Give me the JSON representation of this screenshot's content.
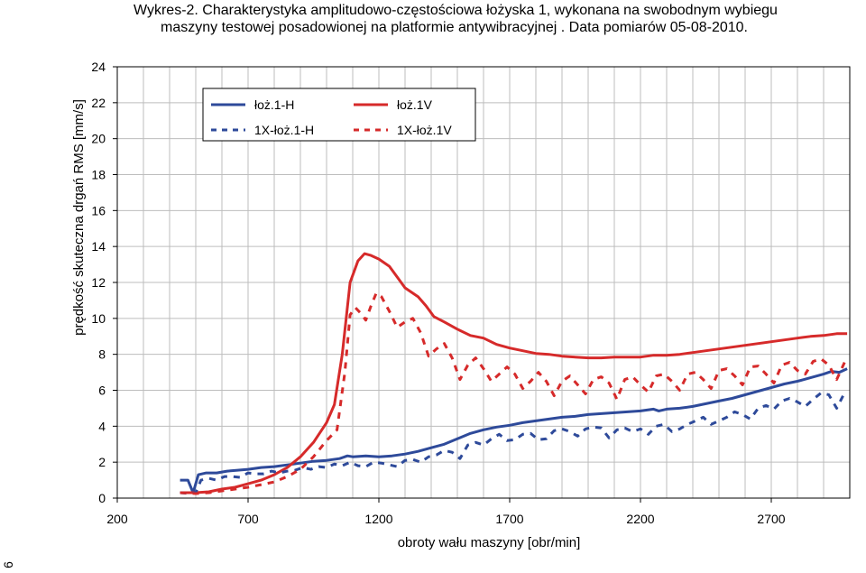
{
  "page_number": "6",
  "chart_data": {
    "type": "line",
    "title_lines": [
      "Wykres-2. Charakterystyka amplitudowo-częstościowa łożyska 1, wykonana na swobodnym wybiegu",
      "maszyny testowej posadowionej na platformie antywibracyjnej . Data pomiarów 05-08-2010."
    ],
    "xlabel": "obroty wału maszyny [obr/min]",
    "ylabel": "prędkość skuteczna drgań RMS [mm/s]",
    "xlim": [
      200,
      3000
    ],
    "ylim": [
      0,
      24
    ],
    "x_ticks": [
      200,
      700,
      1200,
      1700,
      2200,
      2700
    ],
    "y_ticks": [
      0,
      2,
      4,
      6,
      8,
      10,
      12,
      14,
      16,
      18,
      20,
      22,
      24
    ],
    "grid": true,
    "legend_position": "top-left",
    "series": [
      {
        "name": "łoż.1-H",
        "color": "#2e4a9a",
        "dash": "solid",
        "points": [
          [
            440,
            1.0
          ],
          [
            470,
            1.0
          ],
          [
            490,
            0.3
          ],
          [
            510,
            1.3
          ],
          [
            540,
            1.4
          ],
          [
            580,
            1.4
          ],
          [
            620,
            1.5
          ],
          [
            660,
            1.55
          ],
          [
            700,
            1.6
          ],
          [
            750,
            1.7
          ],
          [
            800,
            1.75
          ],
          [
            850,
            1.85
          ],
          [
            900,
            1.95
          ],
          [
            950,
            2.05
          ],
          [
            1000,
            2.1
          ],
          [
            1050,
            2.2
          ],
          [
            1080,
            2.35
          ],
          [
            1100,
            2.3
          ],
          [
            1150,
            2.35
          ],
          [
            1200,
            2.3
          ],
          [
            1250,
            2.35
          ],
          [
            1300,
            2.45
          ],
          [
            1350,
            2.6
          ],
          [
            1400,
            2.8
          ],
          [
            1450,
            3.0
          ],
          [
            1500,
            3.3
          ],
          [
            1550,
            3.6
          ],
          [
            1600,
            3.8
          ],
          [
            1650,
            3.95
          ],
          [
            1700,
            4.05
          ],
          [
            1750,
            4.2
          ],
          [
            1800,
            4.3
          ],
          [
            1850,
            4.4
          ],
          [
            1900,
            4.5
          ],
          [
            1950,
            4.55
          ],
          [
            2000,
            4.65
          ],
          [
            2050,
            4.7
          ],
          [
            2100,
            4.75
          ],
          [
            2150,
            4.8
          ],
          [
            2200,
            4.85
          ],
          [
            2250,
            4.95
          ],
          [
            2270,
            4.85
          ],
          [
            2300,
            4.95
          ],
          [
            2350,
            5.0
          ],
          [
            2400,
            5.1
          ],
          [
            2450,
            5.25
          ],
          [
            2500,
            5.4
          ],
          [
            2550,
            5.55
          ],
          [
            2600,
            5.75
          ],
          [
            2650,
            5.95
          ],
          [
            2700,
            6.15
          ],
          [
            2750,
            6.35
          ],
          [
            2800,
            6.5
          ],
          [
            2850,
            6.7
          ],
          [
            2900,
            6.9
          ],
          [
            2930,
            7.05
          ],
          [
            2960,
            7.0
          ],
          [
            2990,
            7.2
          ]
        ]
      },
      {
        "name": "łoż.1V",
        "color": "#d62a2a",
        "dash": "solid",
        "points": [
          [
            440,
            0.3
          ],
          [
            500,
            0.3
          ],
          [
            550,
            0.35
          ],
          [
            600,
            0.5
          ],
          [
            650,
            0.6
          ],
          [
            700,
            0.8
          ],
          [
            750,
            1.0
          ],
          [
            800,
            1.3
          ],
          [
            850,
            1.7
          ],
          [
            900,
            2.3
          ],
          [
            950,
            3.1
          ],
          [
            1000,
            4.2
          ],
          [
            1030,
            5.2
          ],
          [
            1060,
            8.0
          ],
          [
            1090,
            12.0
          ],
          [
            1120,
            13.2
          ],
          [
            1145,
            13.6
          ],
          [
            1170,
            13.5
          ],
          [
            1200,
            13.3
          ],
          [
            1240,
            12.9
          ],
          [
            1270,
            12.3
          ],
          [
            1300,
            11.7
          ],
          [
            1350,
            11.2
          ],
          [
            1380,
            10.7
          ],
          [
            1410,
            10.1
          ],
          [
            1450,
            9.8
          ],
          [
            1500,
            9.4
          ],
          [
            1550,
            9.05
          ],
          [
            1600,
            8.9
          ],
          [
            1650,
            8.55
          ],
          [
            1700,
            8.35
          ],
          [
            1750,
            8.2
          ],
          [
            1800,
            8.05
          ],
          [
            1850,
            8.0
          ],
          [
            1900,
            7.9
          ],
          [
            1950,
            7.85
          ],
          [
            2000,
            7.8
          ],
          [
            2050,
            7.8
          ],
          [
            2100,
            7.85
          ],
          [
            2150,
            7.85
          ],
          [
            2200,
            7.85
          ],
          [
            2250,
            7.95
          ],
          [
            2300,
            7.95
          ],
          [
            2350,
            8.0
          ],
          [
            2400,
            8.1
          ],
          [
            2450,
            8.2
          ],
          [
            2500,
            8.3
          ],
          [
            2550,
            8.4
          ],
          [
            2600,
            8.5
          ],
          [
            2650,
            8.6
          ],
          [
            2700,
            8.7
          ],
          [
            2750,
            8.8
          ],
          [
            2800,
            8.9
          ],
          [
            2850,
            9.0
          ],
          [
            2900,
            9.05
          ],
          [
            2950,
            9.15
          ],
          [
            2990,
            9.15
          ]
        ]
      },
      {
        "name": "1X-łoż.1-H",
        "color": "#2e4a9a",
        "dash": "dashed",
        "points": [
          [
            440,
            0.3
          ],
          [
            480,
            0.25
          ],
          [
            500,
            0.3
          ],
          [
            520,
            1.0
          ],
          [
            550,
            1.1
          ],
          [
            580,
            1.0
          ],
          [
            610,
            1.2
          ],
          [
            640,
            1.2
          ],
          [
            670,
            1.15
          ],
          [
            700,
            1.4
          ],
          [
            730,
            1.35
          ],
          [
            760,
            1.35
          ],
          [
            790,
            1.5
          ],
          [
            820,
            1.4
          ],
          [
            850,
            1.5
          ],
          [
            880,
            1.55
          ],
          [
            910,
            1.7
          ],
          [
            940,
            1.6
          ],
          [
            970,
            1.75
          ],
          [
            1000,
            1.7
          ],
          [
            1030,
            1.9
          ],
          [
            1060,
            1.8
          ],
          [
            1090,
            2.0
          ],
          [
            1120,
            1.8
          ],
          [
            1150,
            1.75
          ],
          [
            1180,
            2.0
          ],
          [
            1210,
            1.95
          ],
          [
            1240,
            1.85
          ],
          [
            1270,
            1.75
          ],
          [
            1300,
            2.1
          ],
          [
            1330,
            2.15
          ],
          [
            1360,
            2.0
          ],
          [
            1390,
            2.3
          ],
          [
            1420,
            2.4
          ],
          [
            1450,
            2.65
          ],
          [
            1480,
            2.55
          ],
          [
            1510,
            2.2
          ],
          [
            1540,
            2.95
          ],
          [
            1570,
            3.1
          ],
          [
            1600,
            2.95
          ],
          [
            1630,
            3.3
          ],
          [
            1660,
            3.55
          ],
          [
            1690,
            3.2
          ],
          [
            1720,
            3.25
          ],
          [
            1750,
            3.55
          ],
          [
            1780,
            3.6
          ],
          [
            1810,
            3.25
          ],
          [
            1840,
            3.3
          ],
          [
            1870,
            3.75
          ],
          [
            1900,
            3.85
          ],
          [
            1930,
            3.7
          ],
          [
            1960,
            3.45
          ],
          [
            1990,
            3.85
          ],
          [
            2020,
            3.95
          ],
          [
            2050,
            3.9
          ],
          [
            2080,
            3.35
          ],
          [
            2110,
            3.8
          ],
          [
            2140,
            3.9
          ],
          [
            2170,
            3.7
          ],
          [
            2200,
            3.85
          ],
          [
            2230,
            3.55
          ],
          [
            2260,
            4.0
          ],
          [
            2290,
            4.1
          ],
          [
            2320,
            3.7
          ],
          [
            2350,
            3.85
          ],
          [
            2380,
            4.1
          ],
          [
            2410,
            4.3
          ],
          [
            2440,
            4.5
          ],
          [
            2470,
            4.1
          ],
          [
            2500,
            4.3
          ],
          [
            2530,
            4.5
          ],
          [
            2560,
            4.8
          ],
          [
            2590,
            4.65
          ],
          [
            2620,
            4.4
          ],
          [
            2650,
            5.0
          ],
          [
            2680,
            5.15
          ],
          [
            2710,
            4.95
          ],
          [
            2740,
            5.4
          ],
          [
            2770,
            5.55
          ],
          [
            2800,
            5.35
          ],
          [
            2830,
            5.1
          ],
          [
            2860,
            5.5
          ],
          [
            2890,
            5.85
          ],
          [
            2920,
            5.75
          ],
          [
            2950,
            5.0
          ],
          [
            2980,
            5.85
          ]
        ]
      },
      {
        "name": "1X-łoż.1V",
        "color": "#d62a2a",
        "dash": "dashed",
        "points": [
          [
            440,
            0.3
          ],
          [
            500,
            0.25
          ],
          [
            550,
            0.3
          ],
          [
            600,
            0.4
          ],
          [
            650,
            0.5
          ],
          [
            700,
            0.6
          ],
          [
            750,
            0.75
          ],
          [
            800,
            0.9
          ],
          [
            850,
            1.2
          ],
          [
            900,
            1.6
          ],
          [
            950,
            2.3
          ],
          [
            1000,
            3.2
          ],
          [
            1040,
            3.8
          ],
          [
            1070,
            7.0
          ],
          [
            1090,
            10.2
          ],
          [
            1110,
            10.6
          ],
          [
            1130,
            10.3
          ],
          [
            1150,
            9.9
          ],
          [
            1170,
            10.7
          ],
          [
            1190,
            11.4
          ],
          [
            1210,
            11.2
          ],
          [
            1240,
            10.4
          ],
          [
            1270,
            9.5
          ],
          [
            1300,
            9.8
          ],
          [
            1330,
            10.0
          ],
          [
            1360,
            9.2
          ],
          [
            1390,
            7.9
          ],
          [
            1420,
            8.3
          ],
          [
            1450,
            8.6
          ],
          [
            1480,
            7.8
          ],
          [
            1510,
            6.6
          ],
          [
            1540,
            7.4
          ],
          [
            1570,
            7.8
          ],
          [
            1600,
            7.2
          ],
          [
            1630,
            6.5
          ],
          [
            1660,
            6.9
          ],
          [
            1690,
            7.3
          ],
          [
            1720,
            6.9
          ],
          [
            1750,
            6.1
          ],
          [
            1780,
            6.5
          ],
          [
            1810,
            7.0
          ],
          [
            1840,
            6.5
          ],
          [
            1870,
            5.7
          ],
          [
            1900,
            6.5
          ],
          [
            1930,
            6.8
          ],
          [
            1960,
            6.3
          ],
          [
            1990,
            5.8
          ],
          [
            2020,
            6.6
          ],
          [
            2050,
            6.75
          ],
          [
            2080,
            6.4
          ],
          [
            2110,
            5.5
          ],
          [
            2140,
            6.6
          ],
          [
            2170,
            6.75
          ],
          [
            2200,
            6.3
          ],
          [
            2230,
            5.9
          ],
          [
            2260,
            6.8
          ],
          [
            2290,
            6.9
          ],
          [
            2320,
            6.5
          ],
          [
            2350,
            6.0
          ],
          [
            2380,
            6.9
          ],
          [
            2410,
            7.0
          ],
          [
            2440,
            6.6
          ],
          [
            2470,
            6.1
          ],
          [
            2500,
            7.1
          ],
          [
            2530,
            7.2
          ],
          [
            2560,
            6.8
          ],
          [
            2590,
            6.3
          ],
          [
            2620,
            7.3
          ],
          [
            2650,
            7.35
          ],
          [
            2680,
            6.9
          ],
          [
            2710,
            6.4
          ],
          [
            2740,
            7.4
          ],
          [
            2770,
            7.55
          ],
          [
            2800,
            7.1
          ],
          [
            2830,
            6.9
          ],
          [
            2860,
            7.6
          ],
          [
            2890,
            7.75
          ],
          [
            2920,
            7.4
          ],
          [
            2950,
            6.6
          ],
          [
            2980,
            7.55
          ]
        ]
      }
    ]
  }
}
